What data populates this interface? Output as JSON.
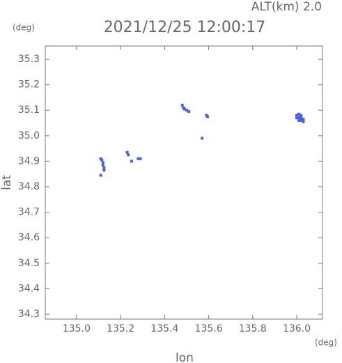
{
  "chart_data": {
    "type": "scatter",
    "title": "2021/12/25 12:00:17",
    "annotation": "ALT(km) 2.0",
    "y_unit": "(deg)",
    "x_unit": "(deg)",
    "xlabel": "lon",
    "ylabel": "lat",
    "color": "#4a5fe0",
    "x": [
      135.11,
      135.115,
      135.12,
      135.12,
      135.125,
      135.125,
      135.11,
      135.23,
      135.235,
      135.25,
      135.28,
      135.29,
      135.48,
      135.485,
      135.49,
      135.5,
      135.51,
      135.59,
      135.595,
      135.57,
      136.0,
      136.01,
      136.02,
      136.01,
      136.02,
      136.03,
      136.0,
      136.01,
      136.02,
      136.03,
      136.015,
      136.025
    ],
    "y": [
      34.91,
      34.905,
      34.895,
      34.885,
      34.875,
      34.865,
      34.845,
      34.935,
      34.925,
      34.9,
      34.91,
      34.91,
      35.12,
      35.11,
      35.105,
      35.1,
      35.095,
      35.08,
      35.075,
      34.99,
      35.08,
      35.085,
      35.08,
      35.07,
      35.07,
      35.065,
      35.07,
      35.06,
      35.06,
      35.055,
      35.075,
      35.065
    ],
    "xlim": [
      134.858,
      136.117
    ],
    "ylim": [
      34.281,
      35.352
    ],
    "xticks": [
      {
        "value": 135.0,
        "label": "135.0"
      },
      135.2,
      135.4,
      135.6,
      135.8,
      {
        "value": 136.0,
        "label": "136.0"
      }
    ],
    "yticks": [
      34.3,
      34.4,
      34.5,
      34.6,
      34.7,
      34.8,
      34.9,
      {
        "value": 35.0,
        "label": "35.0"
      },
      35.1,
      35.2,
      35.3
    ]
  }
}
